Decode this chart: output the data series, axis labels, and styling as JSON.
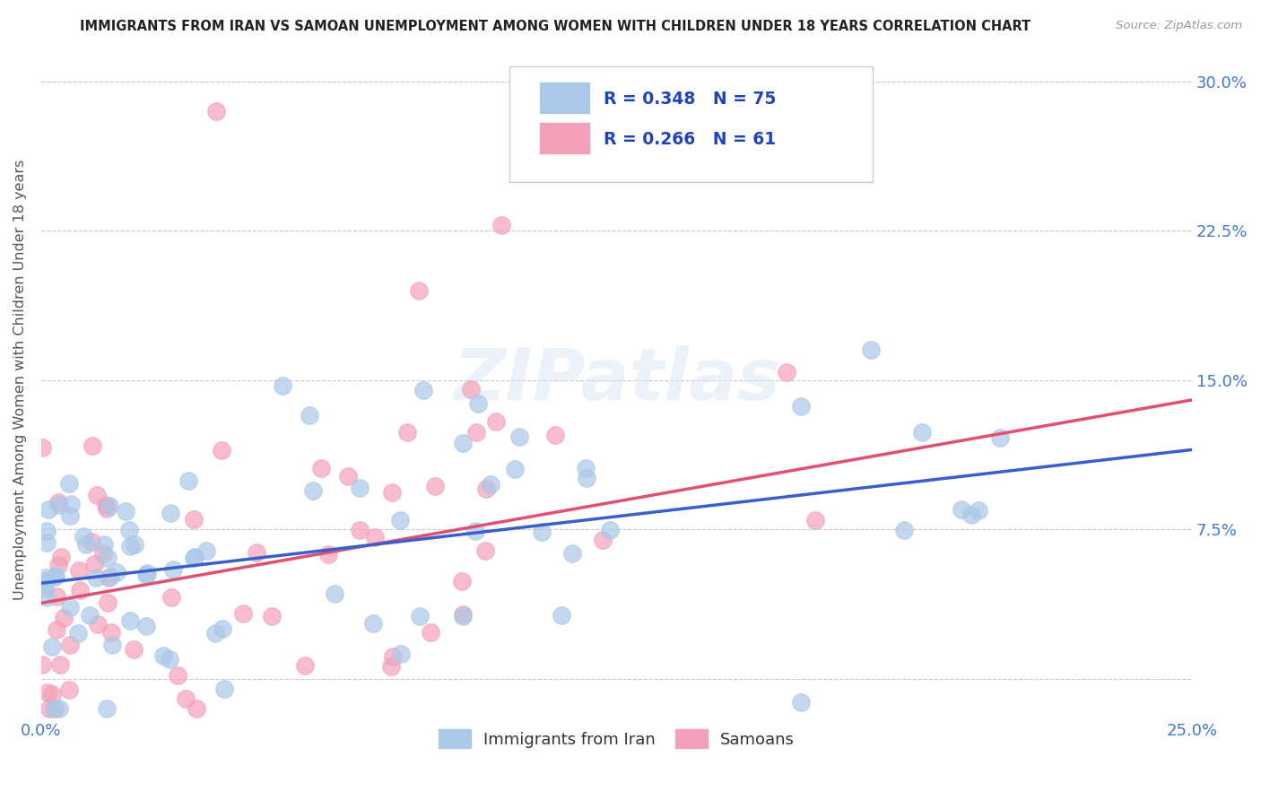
{
  "title": "IMMIGRANTS FROM IRAN VS SAMOAN UNEMPLOYMENT AMONG WOMEN WITH CHILDREN UNDER 18 YEARS CORRELATION CHART",
  "source": "Source: ZipAtlas.com",
  "ylabel": "Unemployment Among Women with Children Under 18 years",
  "xlim": [
    0.0,
    0.25
  ],
  "ylim": [
    -0.02,
    0.32
  ],
  "xticks": [
    0.0,
    0.05,
    0.1,
    0.15,
    0.2,
    0.25
  ],
  "xticklabels": [
    "0.0%",
    "",
    "",
    "",
    "",
    "25.0%"
  ],
  "yticks_right": [
    0.0,
    0.075,
    0.15,
    0.225,
    0.3
  ],
  "yticklabels_right": [
    "",
    "7.5%",
    "15.0%",
    "22.5%",
    "30.0%"
  ],
  "watermark": "ZIPatlas",
  "series1_color": "#aac8e8",
  "series2_color": "#f4a0b8",
  "line1_color": "#3a5fcd",
  "line2_color": "#e05070",
  "N1": 75,
  "N2": 61,
  "legend_R1": "0.348",
  "legend_N1": "75",
  "legend_R2": "0.266",
  "legend_N2": "61",
  "title_color": "#222222",
  "axis_color": "#4477cc",
  "background_color": "#ffffff",
  "grid_color": "#c8c8c8",
  "line1_start_y": 0.048,
  "line1_end_y": 0.115,
  "line2_start_y": 0.038,
  "line2_end_y": 0.14,
  "legend_text_color": "#2244bb"
}
